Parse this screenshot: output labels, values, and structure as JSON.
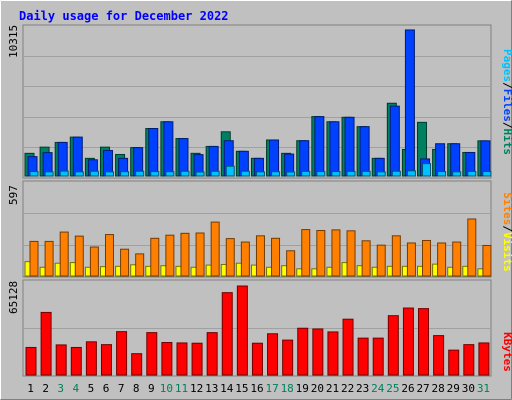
{
  "chart_data": [
    {
      "type": "bar",
      "title": "Daily usage for December 2022",
      "panel": "top",
      "ymax_label": "10315",
      "right_labels": [
        {
          "text": "Pages",
          "color": "#00c0ff"
        },
        {
          "text": "/",
          "color": "#000000"
        },
        {
          "text": "Files",
          "color": "#0040ff"
        },
        {
          "text": "/",
          "color": "#000000"
        },
        {
          "text": "Hits",
          "color": "#008060"
        }
      ],
      "ylim": [
        0,
        10315
      ],
      "categories": [
        "1",
        "2",
        "3",
        "4",
        "5",
        "6",
        "7",
        "8",
        "9",
        "10",
        "11",
        "12",
        "13",
        "14",
        "15",
        "16",
        "17",
        "18",
        "19",
        "20",
        "21",
        "22",
        "23",
        "24",
        "25",
        "26",
        "27",
        "28",
        "29",
        "30",
        "31"
      ],
      "weekend_days": [
        3,
        4,
        10,
        11,
        17,
        18,
        24,
        25,
        31
      ],
      "series": [
        {
          "name": "Hits",
          "color": "#008060",
          "values": [
            1580,
            2010,
            2340,
            2710,
            1230,
            2010,
            1500,
            1980,
            3310,
            3780,
            2610,
            1580,
            2060,
            3080,
            1720,
            1230,
            2510,
            1580,
            2460,
            4140,
            3780,
            4090,
            3440,
            1230,
            5070,
            1850,
            3740,
            1850,
            2250,
            1640,
            2450
          ]
        },
        {
          "name": "Files",
          "color": "#0040ff",
          "values": [
            1350,
            1630,
            2340,
            2710,
            1130,
            1780,
            1230,
            1980,
            3310,
            3780,
            2610,
            1490,
            2060,
            2460,
            1720,
            1230,
            2510,
            1530,
            2460,
            4140,
            3780,
            4090,
            3440,
            1230,
            4870,
            10180,
            1190,
            2250,
            2250,
            1640,
            2450
          ]
        },
        {
          "name": "Pages",
          "color": "#00c0ff",
          "values": [
            310,
            290,
            340,
            290,
            330,
            290,
            300,
            330,
            310,
            300,
            330,
            280,
            330,
            680,
            330,
            290,
            300,
            280,
            320,
            310,
            310,
            320,
            320,
            290,
            330,
            360,
            860,
            310,
            290,
            320,
            310
          ]
        }
      ]
    },
    {
      "type": "bar",
      "panel": "middle",
      "ymax_label": "597",
      "right_labels": [
        {
          "text": "Sites",
          "color": "#ff8000"
        },
        {
          "text": "/",
          "color": "#000000"
        },
        {
          "text": "Visits",
          "color": "#ffff00"
        }
      ],
      "ylim": [
        0,
        597
      ],
      "series": [
        {
          "name": "Visits",
          "color": "#ffff00",
          "values": [
            92,
            56,
            82,
            86,
            56,
            60,
            62,
            72,
            62,
            66,
            62,
            56,
            70,
            74,
            82,
            70,
            56,
            66,
            46,
            46,
            56,
            86,
            66,
            56,
            62,
            62,
            62,
            76,
            56,
            62,
            46
          ]
        },
        {
          "name": "Sites",
          "color": "#ff8000",
          "values": [
            222,
            222,
            282,
            256,
            186,
            266,
            172,
            142,
            242,
            262,
            274,
            276,
            346,
            240,
            218,
            258,
            242,
            162,
            298,
            292,
            296,
            290,
            226,
            198,
            258,
            212,
            228,
            212,
            218,
            366,
            196
          ]
        }
      ]
    },
    {
      "type": "bar",
      "panel": "bottom",
      "ymax_label": "65128",
      "right_labels": [
        {
          "text": "KBytes",
          "color": "#ff0000"
        }
      ],
      "ylim": [
        0,
        65128
      ],
      "series": [
        {
          "name": "KBytes",
          "color": "#ff0000",
          "values": [
            19500,
            44300,
            21300,
            19500,
            23500,
            21500,
            30700,
            15100,
            30000,
            23000,
            22700,
            22500,
            30000,
            58300,
            63000,
            22500,
            29200,
            24700,
            33100,
            32600,
            30500,
            39500,
            26100,
            26100,
            42000,
            47400,
            47000,
            27900,
            17600,
            21500,
            22700
          ]
        }
      ]
    }
  ]
}
